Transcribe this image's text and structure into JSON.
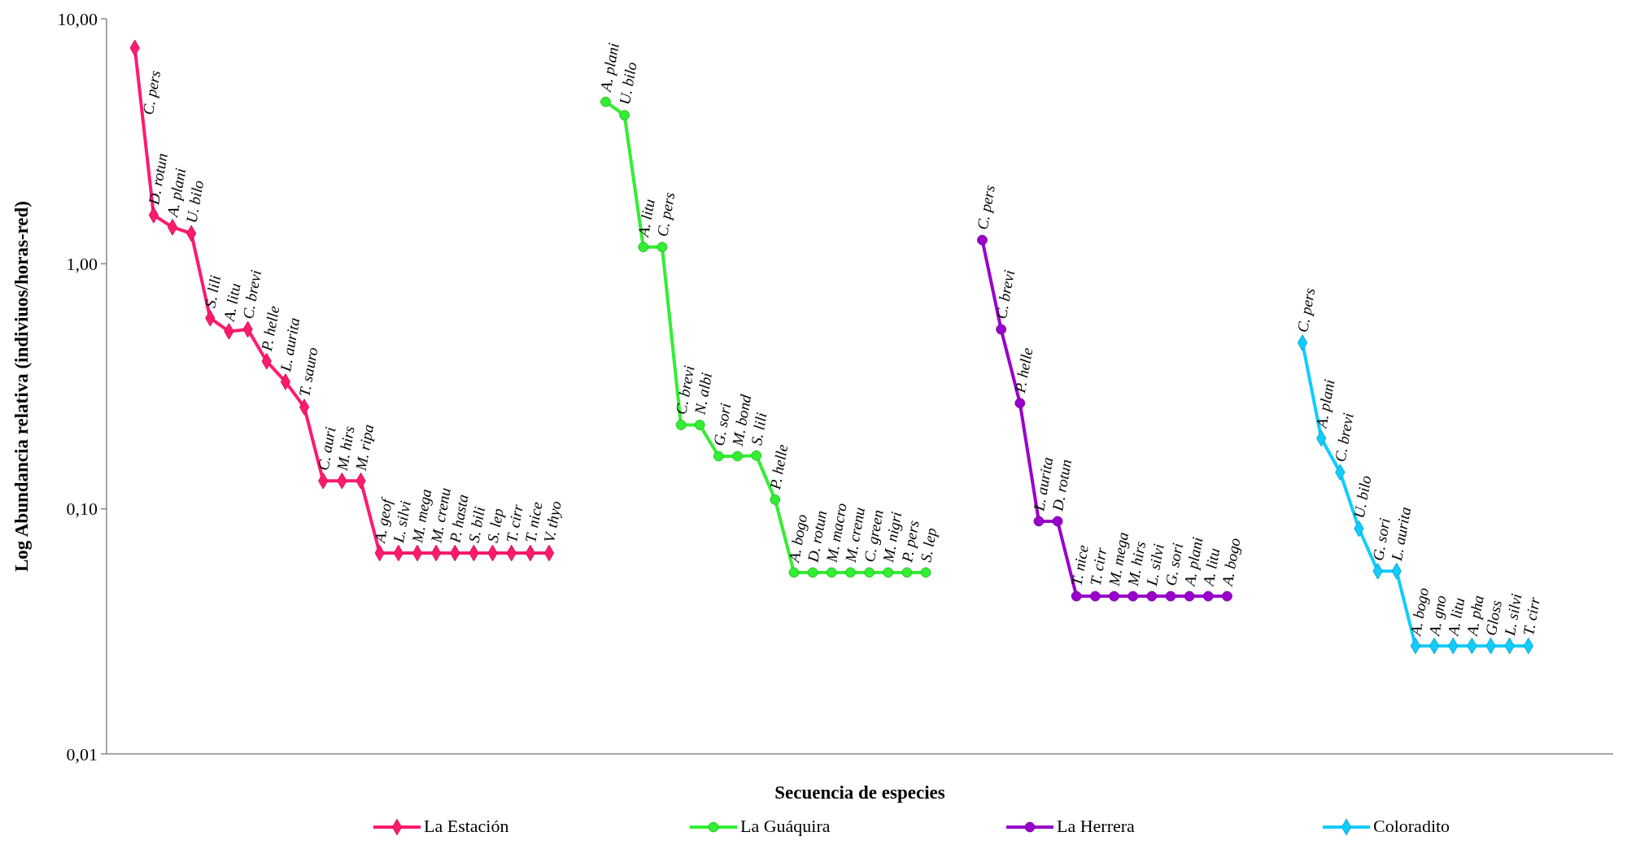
{
  "chart_data": {
    "type": "line",
    "xlabel": "Secuencia de especies",
    "ylabel": "Log Abundancia relativa (indiviuos/horas-red)",
    "log": "y",
    "ylim": [
      0.01,
      10
    ],
    "yticks": [
      {
        "value": 0.01,
        "label": "0,01"
      },
      {
        "value": 0.1,
        "label": "0,10"
      },
      {
        "value": 1,
        "label": "1,00"
      },
      {
        "value": 10,
        "label": "10,00"
      }
    ],
    "legend": "bottom",
    "grid": false,
    "categories": [
      null,
      null,
      null,
      null,
      null,
      null,
      null,
      null,
      null,
      null,
      null,
      null,
      null,
      null,
      null,
      null,
      null,
      null,
      null,
      null,
      null,
      null,
      null,
      null,
      null,
      null,
      null,
      null,
      null,
      null,
      null,
      null,
      null,
      null,
      null,
      null,
      null,
      null,
      null,
      null,
      null,
      null,
      null,
      null,
      null,
      null,
      null,
      null,
      null,
      null,
      null,
      null,
      null,
      null,
      null,
      null,
      null,
      null,
      null,
      null,
      null,
      null,
      null,
      null,
      null,
      null,
      null,
      null,
      null,
      null,
      null,
      null,
      null,
      null,
      null,
      null,
      null,
      null,
      null,
      null
    ],
    "series": [
      {
        "name": "La Estación",
        "color": "#ff1a6e",
        "marker": "diamond",
        "values": [
          null,
          7.6,
          1.58,
          1.41,
          1.33,
          0.6,
          0.53,
          0.54,
          0.4,
          0.33,
          0.26,
          0.13,
          0.13,
          0.13,
          0.066,
          0.066,
          0.066,
          0.066,
          0.066,
          0.066,
          0.066,
          0.066,
          0.066,
          0.066,
          null,
          null,
          null,
          null,
          null,
          null,
          null,
          null,
          null,
          null,
          null,
          null,
          null,
          null,
          null,
          null,
          null,
          null,
          null,
          null,
          null,
          null,
          null,
          null,
          null,
          null,
          null,
          null,
          null,
          null,
          null,
          null,
          null,
          null,
          null,
          null,
          null,
          null,
          null,
          null,
          null,
          null,
          null,
          null,
          null,
          null,
          null,
          null,
          null,
          null,
          null,
          null,
          null,
          null,
          null,
          null
        ],
        "value_labels": [
          null,
          "C. pers",
          "D. rotun",
          "A. plani",
          "U. bilo",
          "S. lili",
          "A. litu",
          "C. brevi",
          "P. helle",
          "L. aurita",
          "T. sauro",
          "C. auri",
          "M. hirs",
          "M. ripa",
          "A. geof",
          "L. silvi",
          "M. mega",
          "M. crenu",
          "P. hasta",
          "S. bili",
          "S. lep",
          "T. cirr",
          "T. nice",
          "V. thyo",
          null,
          null,
          null,
          null,
          null,
          null,
          null,
          null,
          null,
          null,
          null,
          null,
          null,
          null,
          null,
          null,
          null,
          null,
          null,
          null,
          null,
          null,
          null,
          null,
          null,
          null,
          null,
          null,
          null,
          null,
          null,
          null,
          null,
          null,
          null,
          null,
          null,
          null,
          null,
          null,
          null,
          null,
          null,
          null,
          null,
          null,
          null,
          null,
          null,
          null,
          null,
          null,
          null,
          null,
          null,
          null
        ]
      },
      {
        "name": "La Guáquira",
        "color": "#33ee33",
        "marker": "circle",
        "values": [
          null,
          null,
          null,
          null,
          null,
          null,
          null,
          null,
          null,
          null,
          null,
          null,
          null,
          null,
          null,
          null,
          null,
          null,
          null,
          null,
          null,
          null,
          null,
          null,
          null,
          null,
          4.58,
          4.04,
          1.17,
          1.17,
          0.22,
          0.22,
          0.164,
          0.164,
          0.165,
          0.109,
          0.055,
          0.055,
          0.055,
          0.055,
          0.055,
          0.055,
          0.055,
          0.055,
          null,
          null,
          null,
          null,
          null,
          null,
          null,
          null,
          null,
          null,
          null,
          null,
          null,
          null,
          null,
          null,
          null,
          null,
          null,
          null,
          null,
          null,
          null,
          null,
          null,
          null,
          null,
          null,
          null,
          null,
          null,
          null,
          null,
          null,
          null,
          null
        ],
        "value_labels": [
          null,
          null,
          null,
          null,
          null,
          null,
          null,
          null,
          null,
          null,
          null,
          null,
          null,
          null,
          null,
          null,
          null,
          null,
          null,
          null,
          null,
          null,
          null,
          null,
          null,
          null,
          "A. plani",
          "U. bilo",
          "A. litu",
          "C. pers",
          "C. brevi",
          "N. albi",
          "G. sori",
          "M. bond",
          "S. lili",
          "P. helle",
          "A. bogo",
          "D. rotun",
          "M. macro",
          "M. crenu",
          "C. green",
          "M. nigri",
          "P. pers",
          "S. lep",
          null,
          null,
          null,
          null,
          null,
          null,
          null,
          null,
          null,
          null,
          null,
          null,
          null,
          null,
          null,
          null,
          null,
          null,
          null,
          null,
          null,
          null,
          null,
          null,
          null,
          null,
          null,
          null,
          null,
          null,
          null,
          null,
          null,
          null,
          null,
          null
        ]
      },
      {
        "name": "La Herrera",
        "color": "#9900cc",
        "marker": "circle",
        "values": [
          null,
          null,
          null,
          null,
          null,
          null,
          null,
          null,
          null,
          null,
          null,
          null,
          null,
          null,
          null,
          null,
          null,
          null,
          null,
          null,
          null,
          null,
          null,
          null,
          null,
          null,
          null,
          null,
          null,
          null,
          null,
          null,
          null,
          null,
          null,
          null,
          null,
          null,
          null,
          null,
          null,
          null,
          null,
          null,
          null,
          null,
          1.25,
          0.54,
          0.27,
          0.089,
          0.089,
          0.044,
          0.044,
          0.044,
          0.044,
          0.044,
          0.044,
          0.044,
          0.044,
          0.044,
          null,
          null,
          null,
          null,
          null,
          null,
          null,
          null,
          null,
          null,
          null,
          null,
          null,
          null,
          null,
          null,
          null,
          null,
          null,
          null
        ],
        "value_labels": [
          null,
          null,
          null,
          null,
          null,
          null,
          null,
          null,
          null,
          null,
          null,
          null,
          null,
          null,
          null,
          null,
          null,
          null,
          null,
          null,
          null,
          null,
          null,
          null,
          null,
          null,
          null,
          null,
          null,
          null,
          null,
          null,
          null,
          null,
          null,
          null,
          null,
          null,
          null,
          null,
          null,
          null,
          null,
          null,
          null,
          null,
          "C. pers",
          "C. brevi",
          "P. helle",
          "L. aurita",
          "D. rotun",
          "T. nice",
          "T. cirr",
          "M. mega",
          "M. hirs",
          "L. silvi",
          "G. sori",
          "A. plani",
          "A. litu",
          "A. bogo",
          null,
          null,
          null,
          null,
          null,
          null,
          null,
          null,
          null,
          null,
          null,
          null,
          null,
          null,
          null,
          null,
          null,
          null,
          null,
          null
        ]
      },
      {
        "name": "Coloradito",
        "color": "#11ccff",
        "marker": "diamond",
        "values": [
          null,
          null,
          null,
          null,
          null,
          null,
          null,
          null,
          null,
          null,
          null,
          null,
          null,
          null,
          null,
          null,
          null,
          null,
          null,
          null,
          null,
          null,
          null,
          null,
          null,
          null,
          null,
          null,
          null,
          null,
          null,
          null,
          null,
          null,
          null,
          null,
          null,
          null,
          null,
          null,
          null,
          null,
          null,
          null,
          null,
          null,
          null,
          null,
          null,
          null,
          null,
          null,
          null,
          null,
          null,
          null,
          null,
          null,
          null,
          null,
          null,
          null,
          null,
          0.476,
          0.194,
          0.141,
          0.083,
          0.0557,
          0.0557,
          0.0276,
          0.0276,
          0.0276,
          0.0276,
          0.0276,
          0.0276,
          0.0276,
          null,
          null,
          null,
          null
        ],
        "value_labels": [
          null,
          null,
          null,
          null,
          null,
          null,
          null,
          null,
          null,
          null,
          null,
          null,
          null,
          null,
          null,
          null,
          null,
          null,
          null,
          null,
          null,
          null,
          null,
          null,
          null,
          null,
          null,
          null,
          null,
          null,
          null,
          null,
          null,
          null,
          null,
          null,
          null,
          null,
          null,
          null,
          null,
          null,
          null,
          null,
          null,
          null,
          null,
          null,
          null,
          null,
          null,
          null,
          null,
          null,
          null,
          null,
          null,
          null,
          null,
          null,
          null,
          null,
          null,
          "C. pers",
          "A. plani",
          "C. brevi",
          "U. bilo",
          "G. sori",
          "L. aurita",
          "A. bogo",
          "A. gno",
          "A. litu",
          "A. pha",
          "Gloss",
          "L. silvi",
          "T. cirr",
          null,
          null,
          null,
          null
        ]
      }
    ]
  }
}
